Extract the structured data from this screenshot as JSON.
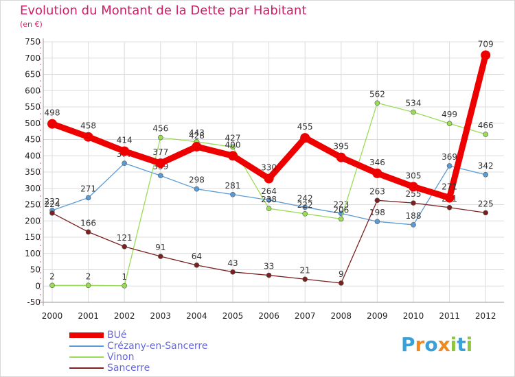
{
  "chart_data": {
    "type": "line",
    "title": "Evolution du Montant de la Dette par Habitant",
    "subtitle": "(en €)",
    "x": [
      "2000",
      "2001",
      "2002",
      "2003",
      "2004",
      "2005",
      "2006",
      "2007",
      "2008",
      "2009",
      "2010",
      "2011",
      "2012"
    ],
    "ylim": [
      -50,
      750
    ],
    "yticks": [
      -50,
      0,
      50,
      100,
      150,
      200,
      250,
      300,
      350,
      400,
      450,
      500,
      550,
      600,
      650,
      700,
      750
    ],
    "ytick_labels": [
      "-50",
      "0",
      "50",
      "100",
      "150",
      "200",
      "250",
      "300",
      "350",
      "400",
      "450",
      "500",
      "550",
      "600",
      "650",
      "700",
      "750"
    ],
    "grid": true,
    "legend_position": "bottom-left",
    "series": [
      {
        "name": "BUé",
        "color": "#ee0000",
        "values": [
          498,
          458,
          414,
          377,
          428,
          400,
          330,
          455,
          395,
          346,
          305,
          271,
          709
        ]
      },
      {
        "name": "Crézany-en-Sancerre",
        "color": "#5b9bd5",
        "values": [
          232,
          271,
          377,
          339,
          298,
          281,
          264,
          242,
          223,
          198,
          188,
          369,
          342
        ]
      },
      {
        "name": "Vinon",
        "color": "#99dd55",
        "values": [
          2,
          2,
          1,
          456,
          443,
          427,
          238,
          222,
          206,
          562,
          534,
          499,
          466
        ]
      },
      {
        "name": "Sancerre",
        "color": "#7a2020",
        "values": [
          224,
          166,
          121,
          91,
          64,
          43,
          33,
          21,
          9,
          263,
          255,
          241,
          225
        ]
      }
    ]
  },
  "logo": {
    "letters": [
      "P",
      "r",
      "o",
      "x",
      "i",
      "t",
      "i"
    ],
    "colors": [
      "#3aa0d8",
      "#f08a1c",
      "#3aa0d8",
      "#f08a1c",
      "#8cc63f",
      "#3aa0d8",
      "#8cc63f"
    ]
  }
}
